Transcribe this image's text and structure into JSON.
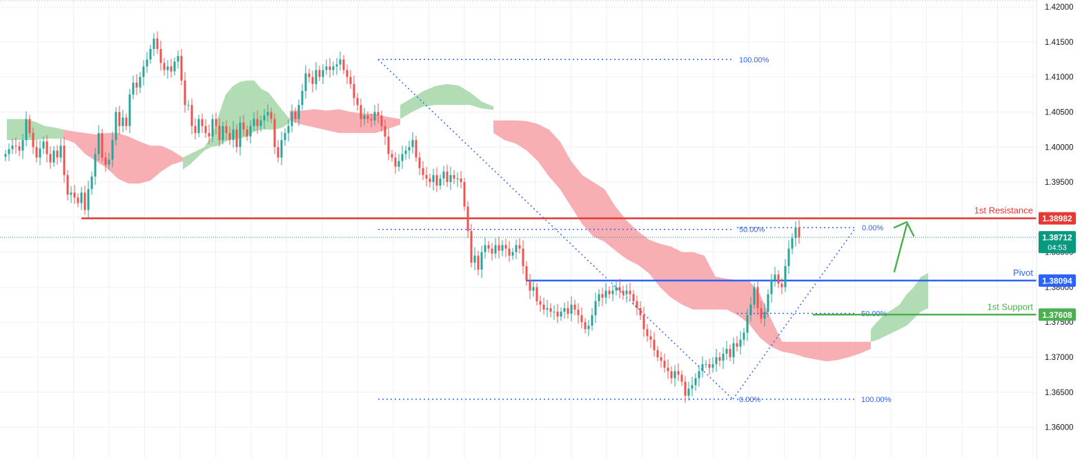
{
  "chart_data": {
    "type": "candlestick",
    "title": "",
    "xlabel": "",
    "ylabel": "",
    "ylim": [
      1.3575,
      1.4205
    ],
    "y_ticks": [
      "1.42000",
      "1.41500",
      "1.41000",
      "1.40500",
      "1.40000",
      "1.39500",
      "1.39000",
      "1.38500",
      "1.38000",
      "1.37500",
      "1.37000",
      "1.36500",
      "1.36000"
    ],
    "grid": true,
    "colors": {
      "up": "#26a69a",
      "down": "#ef5350",
      "cloud_bull": "#a5d6a7",
      "cloud_bear": "#f7a1a6",
      "resistance": "#e53935",
      "pivot": "#2962ff",
      "support": "#4caf50",
      "fib": "#2962ff",
      "current": "#089981"
    },
    "price_series": [
      1.399,
      1.3997,
      1.4002,
      1.4001,
      1.3995,
      1.401,
      1.404,
      1.402,
      1.4,
      1.3985,
      1.3998,
      1.4008,
      1.399,
      1.3978,
      1.3995,
      1.3985,
      1.4002,
      1.396,
      1.3932,
      1.3935,
      1.3928,
      1.392,
      1.3935,
      1.391,
      1.394,
      1.3958,
      1.399,
      1.402,
      1.3985,
      1.3975,
      1.3982,
      1.401,
      1.405,
      1.403,
      1.4042,
      1.403,
      1.4075,
      1.4092,
      1.4085,
      1.41,
      1.4115,
      1.4125,
      1.414,
      1.4155,
      1.414,
      1.412,
      1.411,
      1.4115,
      1.4108,
      1.4122,
      1.413,
      1.4095,
      1.406,
      1.406,
      1.403,
      1.402,
      1.404,
      1.403,
      1.402,
      1.4015,
      1.404,
      1.403,
      1.401,
      1.403,
      1.402,
      1.401,
      1.4025,
      1.4,
      1.4035,
      1.4025,
      1.4015,
      1.403,
      1.404,
      1.403,
      1.4038,
      1.4045,
      1.405,
      1.404,
      1.4,
      1.3985,
      1.401,
      1.402,
      1.403,
      1.405,
      1.404,
      1.406,
      1.408,
      1.4105,
      1.41,
      1.409,
      1.411,
      1.41,
      1.411,
      1.4115,
      1.411,
      1.4115,
      1.4118,
      1.4125,
      1.411,
      1.41,
      1.409,
      1.407,
      1.406,
      1.404,
      1.4045,
      1.404,
      1.4038,
      1.405,
      1.4045,
      1.403,
      1.4015,
      1.399,
      1.3985,
      1.3972,
      1.398,
      1.399,
      1.3995,
      1.4,
      1.401,
      1.3985,
      1.397,
      1.396,
      1.3955,
      1.395,
      1.396,
      1.3945,
      1.3955,
      1.3965,
      1.395,
      1.396,
      1.3955,
      1.3955,
      1.395,
      1.3915,
      1.388,
      1.3835,
      1.3845,
      1.3825,
      1.385,
      1.386,
      1.3855,
      1.3848,
      1.386,
      1.3852,
      1.386,
      1.3855,
      1.3845,
      1.385,
      1.386,
      1.3855,
      1.383,
      1.381,
      1.3795,
      1.38,
      1.378,
      1.3775,
      1.3768,
      1.377,
      1.3765,
      1.3765,
      1.3758,
      1.3765,
      1.377,
      1.3762,
      1.3775,
      1.3768,
      1.376,
      1.375,
      1.374,
      1.3745,
      1.376,
      1.378,
      1.379,
      1.3785,
      1.3795,
      1.379,
      1.3795,
      1.38,
      1.3795,
      1.379,
      1.3795,
      1.379,
      1.378,
      1.377,
      1.376,
      1.374,
      1.373,
      1.3725,
      1.371,
      1.37,
      1.3695,
      1.3685,
      1.368,
      1.367,
      1.368,
      1.3675,
      1.3665,
      1.3645,
      1.3655,
      1.366,
      1.367,
      1.368,
      1.369,
      1.369,
      1.3685,
      1.369,
      1.37,
      1.3695,
      1.3705,
      1.3712,
      1.37,
      1.372,
      1.3715,
      1.3725,
      1.3735,
      1.376,
      1.3775,
      1.38,
      1.377,
      1.3755,
      1.3765,
      1.379,
      1.381,
      1.3818,
      1.3805,
      1.38,
      1.383,
      1.3855,
      1.387,
      1.3885,
      1.3871
    ],
    "cloud_green_1": [
      [
        1.404,
        1.401
      ],
      [
        1.404,
        1.401
      ],
      [
        1.404,
        1.401
      ],
      [
        1.4036,
        1.401
      ],
      [
        1.403,
        1.4012
      ],
      [
        1.4028,
        1.4012
      ],
      [
        1.4025,
        1.4012
      ]
    ],
    "cloud_red_1": [
      [
        1.4025,
        1.4012
      ],
      [
        1.4022,
        1.4006
      ],
      [
        1.402,
        1.399
      ],
      [
        1.4018,
        1.398
      ],
      [
        1.402,
        1.397
      ],
      [
        1.402,
        1.3955
      ],
      [
        1.4015,
        1.3948
      ],
      [
        1.4008,
        1.3948
      ],
      [
        1.4002,
        1.3952
      ],
      [
        1.4002,
        1.3965
      ],
      [
        1.3995,
        1.3975
      ],
      [
        1.3985,
        1.398
      ]
    ],
    "cloud_green_2": [
      [
        1.3985,
        1.3968
      ],
      [
        1.399,
        1.3975
      ],
      [
        1.3995,
        1.3985
      ],
      [
        1.4,
        1.3995
      ],
      [
        1.4015,
        1.4
      ],
      [
        1.4045,
        1.4002
      ],
      [
        1.4075,
        1.4008
      ],
      [
        1.4087,
        1.4012
      ],
      [
        1.4093,
        1.4012
      ],
      [
        1.4095,
        1.4015
      ],
      [
        1.4095,
        1.4022
      ],
      [
        1.4083,
        1.4025
      ],
      [
        1.4078,
        1.4025
      ],
      [
        1.4065,
        1.4025
      ],
      [
        1.4052,
        1.4028
      ],
      [
        1.404,
        1.4035
      ]
    ],
    "cloud_red_2": [
      [
        1.4052,
        1.4038
      ],
      [
        1.4052,
        1.4032
      ],
      [
        1.4054,
        1.4028
      ],
      [
        1.4052,
        1.4024
      ],
      [
        1.4054,
        1.402
      ],
      [
        1.405,
        1.402
      ],
      [
        1.4048,
        1.402
      ],
      [
        1.4047,
        1.402
      ],
      [
        1.4043,
        1.4026
      ],
      [
        1.404,
        1.4032
      ]
    ],
    "cloud_green_3": [
      [
        1.406,
        1.404
      ],
      [
        1.407,
        1.405
      ],
      [
        1.408,
        1.4058
      ],
      [
        1.4087,
        1.406
      ],
      [
        1.409,
        1.406
      ],
      [
        1.4088,
        1.406
      ],
      [
        1.4078,
        1.406
      ],
      [
        1.4065,
        1.4055
      ],
      [
        1.4058,
        1.4053
      ]
    ],
    "cloud_red_3": [
      [
        1.4038,
        1.402
      ],
      [
        1.4038,
        1.401
      ],
      [
        1.4038,
        1.4005
      ],
      [
        1.4037,
        1.3995
      ],
      [
        1.4033,
        1.398
      ],
      [
        1.4025,
        1.3958
      ],
      [
        1.4008,
        1.394
      ],
      [
        1.398,
        1.3915
      ],
      [
        1.396,
        1.389
      ],
      [
        1.395,
        1.3872
      ],
      [
        1.394,
        1.3865
      ],
      [
        1.3915,
        1.3852
      ],
      [
        1.3895,
        1.384
      ],
      [
        1.388,
        1.3832
      ],
      [
        1.3868,
        1.382
      ],
      [
        1.3862,
        1.38
      ],
      [
        1.3858,
        1.3785
      ],
      [
        1.385,
        1.3775
      ],
      [
        1.385,
        1.3768
      ],
      [
        1.3845,
        1.3768
      ],
      [
        1.3815,
        1.3768
      ],
      [
        1.3812,
        1.3768
      ],
      [
        1.381,
        1.376
      ],
      [
        1.381,
        1.3748
      ],
      [
        1.379,
        1.3728
      ],
      [
        1.3755,
        1.3715
      ],
      [
        1.3722,
        1.3708
      ],
      [
        1.3722,
        1.3705
      ],
      [
        1.3722,
        1.37
      ],
      [
        1.3722,
        1.3697
      ],
      [
        1.3722,
        1.3694
      ],
      [
        1.3722,
        1.3696
      ],
      [
        1.3722,
        1.37
      ],
      [
        1.3722,
        1.3705
      ],
      [
        1.3722,
        1.3712
      ]
    ],
    "cloud_green_4": [
      [
        1.374,
        1.3722
      ],
      [
        1.3752,
        1.3725
      ],
      [
        1.3762,
        1.373
      ],
      [
        1.3768,
        1.3735
      ],
      [
        1.3775,
        1.374
      ],
      [
        1.379,
        1.3745
      ],
      [
        1.38,
        1.3755
      ],
      [
        1.3815,
        1.3765
      ],
      [
        1.382,
        1.377
      ]
    ],
    "levels": [
      {
        "name": "1st Resistance",
        "value": 1.38982,
        "label": "1.38982"
      },
      {
        "name": "Pivot",
        "value": 1.38094,
        "label": "1.38094"
      },
      {
        "name": "1st Support",
        "value": 1.37608,
        "label": "1.37608"
      }
    ],
    "current_price": {
      "value": 1.38712,
      "label": "1.38712",
      "countdown": "04:53"
    },
    "fib_down": {
      "high": 1.4125,
      "low": 1.364,
      "levels": [
        "100.00%",
        "50.00%",
        "0.00%"
      ]
    },
    "fib_up": {
      "low": 1.364,
      "high": 1.3885,
      "levels": [
        "100.00%",
        "50.00%",
        "0.00%"
      ]
    },
    "annotations": [
      "arrow-up"
    ]
  }
}
